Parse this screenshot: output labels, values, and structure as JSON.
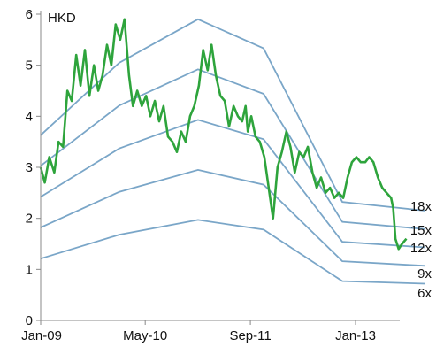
{
  "chart_data": {
    "type": "line",
    "unit_label": "HKD",
    "xlim": [
      "2009-01-01",
      "2013-12-31"
    ],
    "ylim": [
      0,
      6
    ],
    "x_ticks": [
      {
        "date": "2009-01-01",
        "label": "Jan-09"
      },
      {
        "date": "2010-05-01",
        "label": "May-10"
      },
      {
        "date": "2011-09-01",
        "label": "Sep-11"
      },
      {
        "date": "2013-01-01",
        "label": "Jan-13"
      }
    ],
    "y_ticks": [
      0,
      1,
      2,
      3,
      4,
      5,
      6
    ],
    "colors": {
      "price": "#2ea43c",
      "band": "#7aa6c8",
      "axis": "#888888"
    },
    "bands": [
      {
        "name": "18x",
        "x": [
          "2009-01-01",
          "2010-01-01",
          "2011-01-01",
          "2011-11-01",
          "2012-11-01",
          "2013-11-20"
        ],
        "y": [
          3.63,
          5.05,
          5.9,
          5.33,
          2.32,
          2.15
        ]
      },
      {
        "name": "15x",
        "x": [
          "2009-01-01",
          "2010-01-01",
          "2011-01-01",
          "2011-11-01",
          "2012-11-01",
          "2013-11-20"
        ],
        "y": [
          3.03,
          4.21,
          4.92,
          4.44,
          1.93,
          1.79
        ]
      },
      {
        "name": "12x",
        "x": [
          "2009-01-01",
          "2010-01-01",
          "2011-01-01",
          "2011-11-01",
          "2012-11-01",
          "2013-11-20"
        ],
        "y": [
          2.42,
          3.37,
          3.93,
          3.55,
          1.54,
          1.43
        ]
      },
      {
        "name": "9x",
        "x": [
          "2009-01-01",
          "2010-01-01",
          "2011-01-01",
          "2011-11-01",
          "2012-11-01",
          "2013-11-20"
        ],
        "y": [
          1.82,
          2.52,
          2.95,
          2.66,
          1.16,
          1.07
        ]
      },
      {
        "name": "6x",
        "x": [
          "2009-01-01",
          "2010-01-01",
          "2011-01-01",
          "2011-11-01",
          "2012-11-01",
          "2013-11-20"
        ],
        "y": [
          1.21,
          1.68,
          1.97,
          1.78,
          0.77,
          0.72
        ]
      }
    ],
    "series": [
      {
        "x": [
          "2009-01-01",
          "2009-01-20",
          "2009-02-10",
          "2009-03-05",
          "2009-03-25",
          "2009-04-15",
          "2009-05-05",
          "2009-05-25",
          "2009-06-15",
          "2009-07-05",
          "2009-07-25",
          "2009-08-15",
          "2009-09-05",
          "2009-09-25",
          "2009-10-15",
          "2009-11-05",
          "2009-11-25",
          "2009-12-15",
          "2010-01-05",
          "2010-01-25",
          "2010-02-15",
          "2010-03-05",
          "2010-03-25",
          "2010-04-15",
          "2010-05-05",
          "2010-05-25",
          "2010-06-15",
          "2010-07-05",
          "2010-07-25",
          "2010-08-15",
          "2010-09-05",
          "2010-09-25",
          "2010-10-15",
          "2010-11-05",
          "2010-11-25",
          "2010-12-15",
          "2011-01-05",
          "2011-01-25",
          "2011-02-15",
          "2011-03-05",
          "2011-03-25",
          "2011-04-15",
          "2011-05-05",
          "2011-05-25",
          "2011-06-15",
          "2011-07-05",
          "2011-07-25",
          "2011-08-10",
          "2011-08-20",
          "2011-09-05",
          "2011-09-25",
          "2011-10-15",
          "2011-11-05",
          "2011-11-25",
          "2011-12-15",
          "2012-01-05",
          "2012-01-25",
          "2012-02-15",
          "2012-03-05",
          "2012-03-25",
          "2012-04-15",
          "2012-05-05",
          "2012-05-25",
          "2012-06-15",
          "2012-07-05",
          "2012-07-25",
          "2012-08-15",
          "2012-09-05",
          "2012-09-25",
          "2012-10-15",
          "2012-11-05",
          "2012-11-25",
          "2012-12-15",
          "2013-01-05",
          "2013-01-25",
          "2013-02-15",
          "2013-03-05",
          "2013-03-25",
          "2013-04-15",
          "2013-05-05",
          "2013-05-25",
          "2013-06-15",
          "2013-06-25",
          "2013-07-05",
          "2013-07-20",
          "2013-08-05",
          "2013-08-25"
        ],
        "values": [
          3.0,
          2.7,
          3.2,
          2.9,
          3.5,
          3.4,
          4.5,
          4.3,
          5.2,
          4.6,
          5.3,
          4.4,
          5.0,
          4.5,
          4.8,
          5.4,
          5.0,
          5.8,
          5.5,
          5.9,
          4.8,
          4.2,
          4.5,
          4.2,
          4.4,
          4.0,
          4.3,
          3.9,
          4.2,
          3.6,
          3.5,
          3.3,
          3.7,
          3.5,
          4.0,
          4.2,
          4.6,
          5.3,
          4.9,
          5.4,
          4.8,
          4.4,
          4.3,
          3.8,
          4.2,
          4.0,
          3.9,
          4.2,
          3.7,
          4.0,
          3.6,
          3.5,
          3.2,
          2.6,
          2.0,
          3.0,
          3.3,
          3.7,
          3.4,
          2.9,
          3.3,
          3.2,
          3.4,
          2.9,
          2.6,
          2.8,
          2.5,
          2.6,
          2.4,
          2.5,
          2.4,
          2.8,
          3.1,
          3.2,
          3.1,
          3.1,
          3.2,
          3.1,
          2.8,
          2.6,
          2.5,
          2.4,
          2.2,
          1.6,
          1.4,
          1.5,
          1.6
        ]
      }
    ]
  }
}
